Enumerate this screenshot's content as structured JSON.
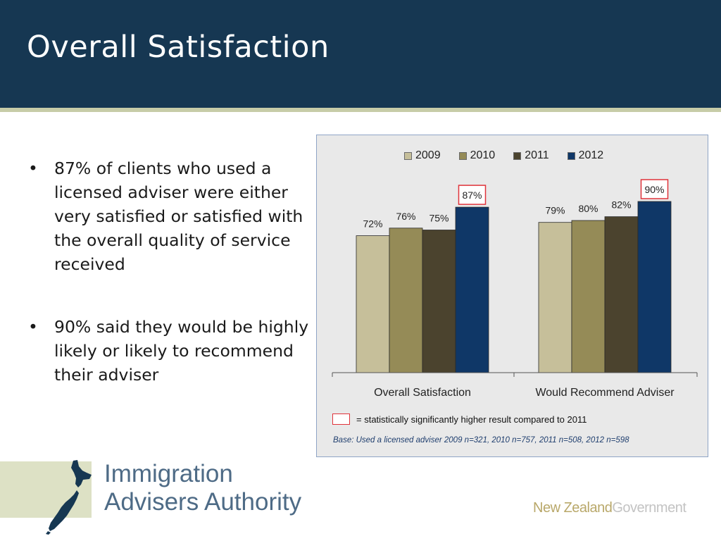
{
  "slide": {
    "title": "Overall Satisfaction",
    "bullets": [
      "87% of clients who used a licensed adviser were either very satisfied or satisfied with the overall quality of service received",
      "90% said they would be highly likely or likely to recommend their adviser"
    ],
    "bullet_symbol": "•"
  },
  "chart_data": {
    "type": "bar",
    "categories": [
      "Overall Satisfaction",
      "Would Recommend Adviser"
    ],
    "series": [
      {
        "name": "2009",
        "color": "#c6bf9a",
        "values": [
          72,
          79
        ]
      },
      {
        "name": "2010",
        "color": "#958b57",
        "values": [
          76,
          80
        ]
      },
      {
        "name": "2011",
        "color": "#4b432e",
        "values": [
          75,
          82
        ]
      },
      {
        "name": "2012",
        "color": "#0f3767",
        "values": [
          87,
          90
        ]
      }
    ],
    "value_format": "percent",
    "highlighted": [
      {
        "series": "2012",
        "category_index": 0
      },
      {
        "series": "2012",
        "category_index": 1
      }
    ],
    "highlight_color": "#e0333a",
    "legend_position": "top",
    "ylim": [
      0,
      100
    ],
    "grid": false,
    "significance_note": "= statistically significantly higher result compared to 2011",
    "base_note": "Base: Used a licensed adviser 2009 n=321, 2010 n=757, 2011 n=508, 2012 n=598"
  },
  "footer": {
    "org_name_line1": "Immigration",
    "org_name_line2": "Advisers Authority",
    "gov_part1": "New Zealand",
    "gov_part2": "Government",
    "map_icon": "new-zealand-map-icon"
  },
  "colors": {
    "header_bg": "#163752",
    "header_stripe": "#c7cca8",
    "chart_bg": "#e9e9e9",
    "org_text": "#4e6b86"
  }
}
